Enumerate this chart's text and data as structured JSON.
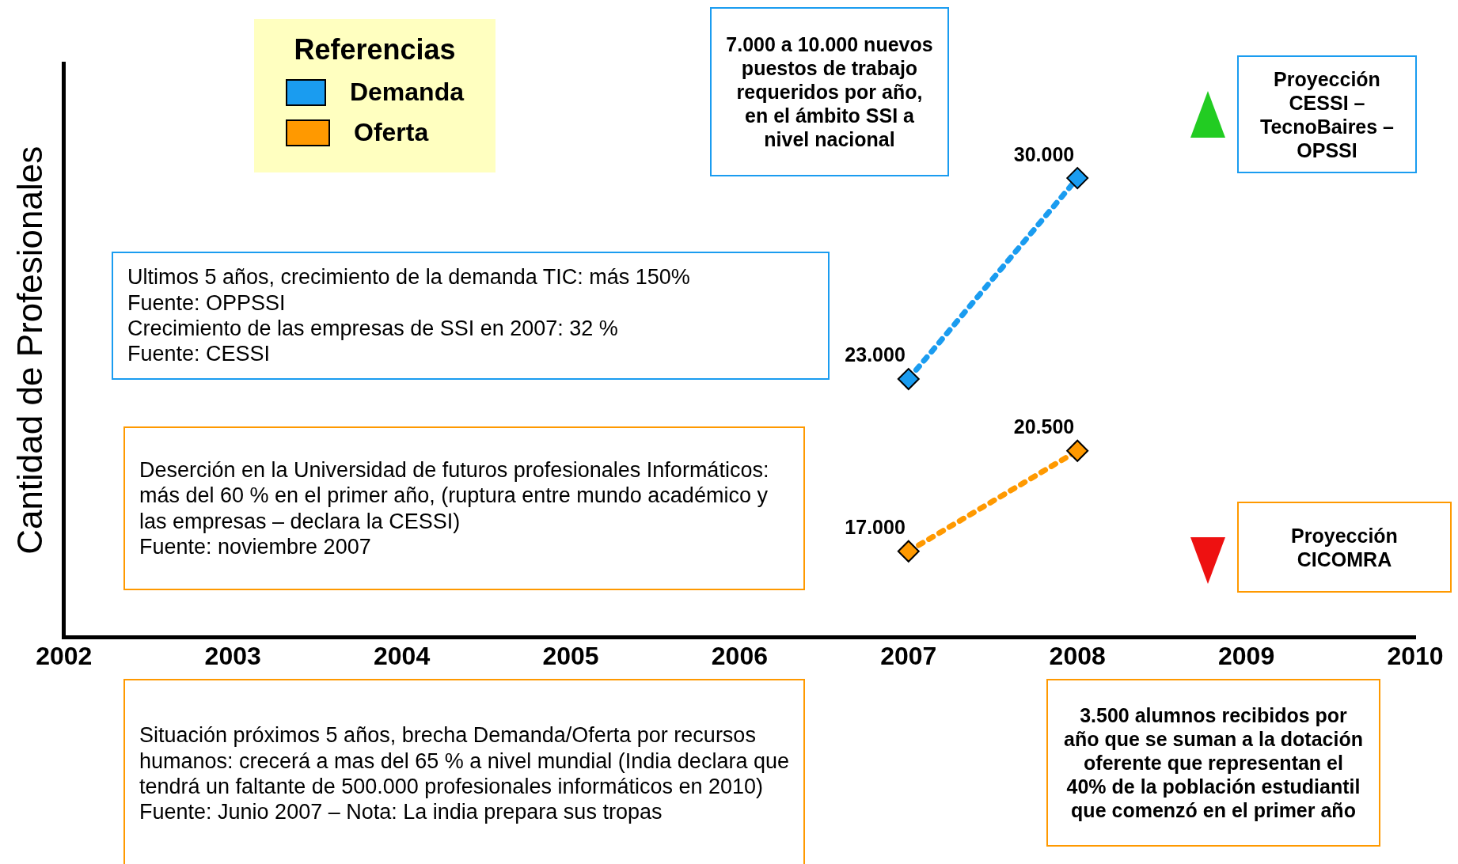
{
  "chart_data": {
    "type": "line",
    "ylabel": "Cantidad de Profesionales",
    "legend_title": "Referencias",
    "legend": "top left",
    "marker": "diamond",
    "line_style": "dotted",
    "tick_labels": "x",
    "ylim": [
      14000,
      34000
    ],
    "categories": [
      "2002",
      "2003",
      "2004",
      "2005",
      "2006",
      "2007",
      "2008",
      "2009",
      "2010"
    ],
    "series": [
      {
        "name": "Demanda",
        "color": "#1a9cf0",
        "values": [
          null,
          null,
          null,
          null,
          null,
          23000,
          30000,
          null,
          null
        ],
        "value_labels": [
          null,
          null,
          null,
          null,
          null,
          "23.000",
          "30.000",
          null,
          null
        ]
      },
      {
        "name": "Oferta",
        "color": "#ff9900",
        "values": [
          null,
          null,
          null,
          null,
          null,
          17000,
          20500,
          null,
          null
        ],
        "value_labels": [
          null,
          null,
          null,
          null,
          null,
          "17.000",
          "20.500",
          null,
          null
        ]
      }
    ],
    "annotations": [
      "7.000 a 10.000 nuevos puestos de trabajo requeridos por año, en el ámbito SSI  a nivel nacional",
      "Proyección CESSI – TecnoBaires – OPSSI",
      "Ultimos 5 años, crecimiento de la demanda TIC: más 150%\nFuente: OPPSSI\nCrecimiento de las empresas de SSI en 2007: 32 %\nFuente: CESSI",
      "Deserción en la Universidad de futuros profesionales Informáticos: más del  60 % en el primer año, (ruptura entre mundo académico y las empresas – declara la CESSI)\nFuente: noviembre 2007",
      "Situación próximos 5 años, brecha Demanda/Oferta por recursos humanos: crecerá a mas del 65 % a nivel mundial (India declara que tendrá un faltante de 500.000 profesionales informáticos en 2010)\nFuente: Junio 2007 – Nota: La india prepara sus tropas",
      "Proyección CICOMRA",
      "3.500 alumnos recibidos por año que se suman a la dotación oferente que representan el 40%  de la población estudiantil que comenzó en el primer año"
    ]
  }
}
